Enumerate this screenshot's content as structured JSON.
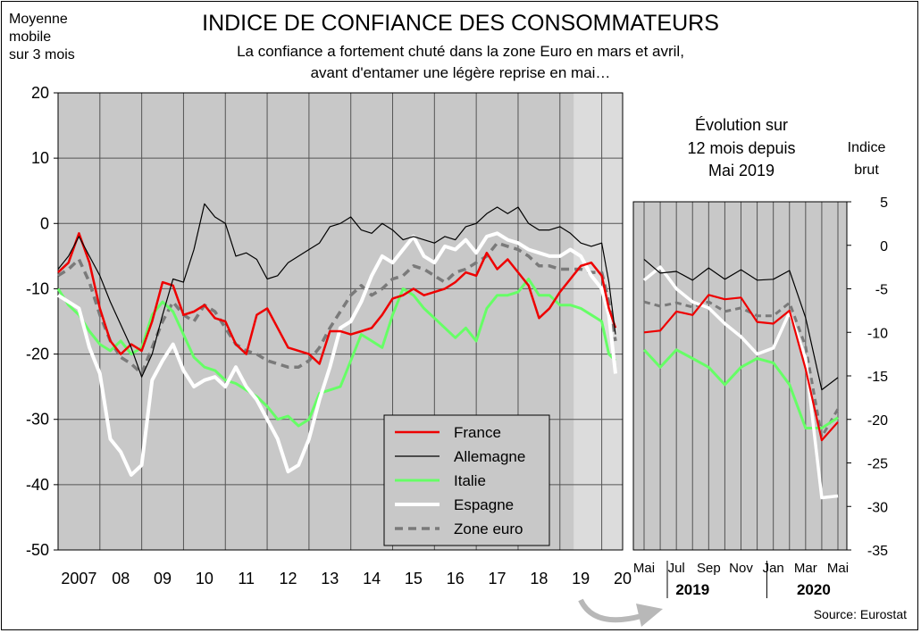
{
  "header": {
    "title": "INDICE DE CONFIANCE DES CONSOMMATEURS",
    "subtitle_line1": "La confiance a fortement chuté dans la zone Euro en mars et avril,",
    "subtitle_line2": "avant d'entamer une légère reprise en mai…",
    "left_axis_label": [
      "Moyenne",
      "mobile",
      "sur 3 mois"
    ],
    "inset_title": [
      "Évolution sur",
      "12 mois depuis",
      "Mai 2019"
    ],
    "right_axis_label": [
      "Indice",
      "brut"
    ],
    "source": "Source: Eurostat"
  },
  "legend": {
    "placement": "bottom-right of main chart",
    "entries": [
      "France",
      "Allemagne",
      "Italie",
      "Espagne",
      "Zone euro"
    ]
  },
  "colors": {
    "France": "#ee0000",
    "Allemagne": "#000000",
    "Italie": "#66ff66",
    "Espagne": "#ffffff",
    "Zone euro": "#7a7a7a",
    "plot_background": "#c8c8c8",
    "highlight_background": "#dcdcdc"
  },
  "chart_data": [
    {
      "type": "line",
      "title": "INDICE DE CONFIANCE DES CONSOMMATEURS",
      "ylabel": "Moyenne mobile sur 3 mois",
      "xlabel": "",
      "ylim": [
        -50,
        20
      ],
      "yticks": [
        20,
        10,
        0,
        -10,
        -20,
        -30,
        -40,
        -50
      ],
      "xlim": [
        2007,
        2020.5
      ],
      "xtick_labels": [
        "2007",
        "08",
        "09",
        "10",
        "11",
        "12",
        "13",
        "14",
        "15",
        "16",
        "17",
        "18",
        "19",
        "20"
      ],
      "grid": true,
      "highlight_band": [
        2019.33,
        2020.5
      ],
      "series": [
        {
          "name": "France",
          "x": [
            2007,
            2007.25,
            2007.5,
            2007.75,
            2008,
            2008.25,
            2008.5,
            2008.75,
            2009,
            2009.25,
            2009.5,
            2009.75,
            2010,
            2010.25,
            2010.5,
            2010.75,
            2011,
            2011.25,
            2011.5,
            2011.75,
            2012,
            2012.25,
            2012.5,
            2012.75,
            2013,
            2013.25,
            2013.5,
            2013.75,
            2014,
            2014.25,
            2014.5,
            2014.75,
            2015,
            2015.25,
            2015.5,
            2015.75,
            2016,
            2016.25,
            2016.5,
            2016.75,
            2017,
            2017.25,
            2017.5,
            2017.75,
            2018,
            2018.25,
            2018.5,
            2018.75,
            2019,
            2019.25,
            2019.5,
            2019.75,
            2020,
            2020.17,
            2020.33
          ],
          "values": [
            -7.5,
            -6,
            -1.5,
            -6,
            -13,
            -18,
            -20,
            -18.5,
            -19.5,
            -15,
            -9,
            -9.5,
            -14,
            -13.5,
            -12.5,
            -14.5,
            -15,
            -18.5,
            -20,
            -14,
            -13,
            -16,
            -19,
            -19.5,
            -20,
            -21.5,
            -16.5,
            -16.5,
            -17,
            -16.5,
            -16,
            -14,
            -11.5,
            -11,
            -10,
            -11,
            -10.5,
            -10,
            -9,
            -7.5,
            -8,
            -4.5,
            -7,
            -5.5,
            -7.5,
            -9.5,
            -14.5,
            -13,
            -10.5,
            -8.5,
            -6.5,
            -6,
            -8,
            -13,
            -16
          ]
        },
        {
          "name": "Allemagne",
          "x": [
            2007,
            2007.25,
            2007.5,
            2007.75,
            2008,
            2008.25,
            2008.5,
            2008.75,
            2009,
            2009.25,
            2009.5,
            2009.75,
            2010,
            2010.25,
            2010.5,
            2010.75,
            2011,
            2011.25,
            2011.5,
            2011.75,
            2012,
            2012.25,
            2012.5,
            2012.75,
            2013,
            2013.25,
            2013.5,
            2013.75,
            2014,
            2014.25,
            2014.5,
            2014.75,
            2015,
            2015.25,
            2015.5,
            2015.75,
            2016,
            2016.25,
            2016.5,
            2016.75,
            2017,
            2017.25,
            2017.5,
            2017.75,
            2018,
            2018.25,
            2018.5,
            2018.75,
            2019,
            2019.25,
            2019.5,
            2019.75,
            2020,
            2020.17,
            2020.33
          ],
          "values": [
            -7,
            -5,
            -2,
            -5,
            -8,
            -12,
            -15.5,
            -19,
            -23.5,
            -20,
            -14,
            -8.5,
            -9,
            -4,
            3,
            1,
            0,
            -5,
            -4.5,
            -5.5,
            -8.5,
            -8,
            -6,
            -5,
            -4,
            -3,
            -0.5,
            0,
            1,
            -1,
            -1.5,
            0,
            -1,
            -2.5,
            -2,
            -2.5,
            -3,
            -2,
            -2.5,
            -0.5,
            0,
            1.5,
            2.5,
            1.5,
            2.5,
            0,
            -1,
            -1,
            -0.5,
            -1.5,
            -3,
            -3.5,
            -3,
            -9,
            -17
          ]
        },
        {
          "name": "Italie",
          "x": [
            2007,
            2007.25,
            2007.5,
            2007.75,
            2008,
            2008.25,
            2008.5,
            2008.75,
            2009,
            2009.25,
            2009.5,
            2009.75,
            2010,
            2010.25,
            2010.5,
            2010.75,
            2011,
            2011.25,
            2011.5,
            2011.75,
            2012,
            2012.25,
            2012.5,
            2012.75,
            2013,
            2013.25,
            2013.5,
            2013.75,
            2014,
            2014.25,
            2014.5,
            2014.75,
            2015,
            2015.25,
            2015.5,
            2015.75,
            2016,
            2016.25,
            2016.5,
            2016.75,
            2017,
            2017.25,
            2017.5,
            2017.75,
            2018,
            2018.25,
            2018.5,
            2018.75,
            2019,
            2019.25,
            2019.5,
            2019.75,
            2020,
            2020.17,
            2020.33
          ],
          "values": [
            -10,
            -12.5,
            -14,
            -16.5,
            -18.5,
            -19.5,
            -18,
            -20,
            -19,
            -14,
            -12,
            -13.5,
            -17,
            -20.5,
            -22,
            -22.5,
            -24,
            -24.5,
            -25.5,
            -26.5,
            -28,
            -30,
            -29.5,
            -31,
            -30,
            -26,
            -25.5,
            -25,
            -21,
            -17,
            -18,
            -19,
            -14,
            -10,
            -11,
            -13,
            -14.5,
            -16,
            -17.5,
            -16,
            -18,
            -13,
            -11,
            -11,
            -10.5,
            -8.5,
            -11,
            -11,
            -12.5,
            -12.5,
            -13,
            -14,
            -15,
            -20,
            -21
          ]
        },
        {
          "name": "Espagne",
          "x": [
            2007,
            2007.25,
            2007.5,
            2007.75,
            2008,
            2008.25,
            2008.5,
            2008.75,
            2009,
            2009.25,
            2009.5,
            2009.75,
            2010,
            2010.25,
            2010.5,
            2010.75,
            2011,
            2011.25,
            2011.5,
            2011.75,
            2012,
            2012.25,
            2012.5,
            2012.75,
            2013,
            2013.25,
            2013.5,
            2013.75,
            2014,
            2014.25,
            2014.5,
            2014.75,
            2015,
            2015.25,
            2015.5,
            2015.75,
            2016,
            2016.25,
            2016.5,
            2016.75,
            2017,
            2017.25,
            2017.5,
            2017.75,
            2018,
            2018.25,
            2018.5,
            2018.75,
            2019,
            2019.25,
            2019.5,
            2019.75,
            2020,
            2020.17,
            2020.33
          ],
          "values": [
            -11,
            -12,
            -13,
            -19,
            -23,
            -33,
            -35,
            -38.5,
            -37,
            -24,
            -21,
            -18.5,
            -22.5,
            -25,
            -24,
            -23.5,
            -25,
            -22,
            -25,
            -27,
            -30,
            -33,
            -38,
            -37,
            -33,
            -27,
            -22,
            -16,
            -15,
            -12,
            -8,
            -5,
            -6,
            -4,
            -2,
            -5,
            -6,
            -3.5,
            -4,
            -2.5,
            -4.5,
            -2,
            -1.5,
            -2.5,
            -3,
            -4,
            -4.5,
            -5,
            -5,
            -4,
            -5,
            -8,
            -10,
            -14,
            -23
          ]
        },
        {
          "name": "Zone euro",
          "x": [
            2007,
            2007.25,
            2007.5,
            2007.75,
            2008,
            2008.25,
            2008.5,
            2008.75,
            2009,
            2009.25,
            2009.5,
            2009.75,
            2010,
            2010.25,
            2010.5,
            2010.75,
            2011,
            2011.25,
            2011.5,
            2011.75,
            2012,
            2012.25,
            2012.5,
            2012.75,
            2013,
            2013.25,
            2013.5,
            2013.75,
            2014,
            2014.25,
            2014.5,
            2014.75,
            2015,
            2015.25,
            2015.5,
            2015.75,
            2016,
            2016.25,
            2016.5,
            2016.75,
            2017,
            2017.25,
            2017.5,
            2017.75,
            2018,
            2018.25,
            2018.5,
            2018.75,
            2019,
            2019.25,
            2019.5,
            2019.75,
            2020,
            2020.17,
            2020.33
          ],
          "values": [
            -8,
            -7,
            -5.5,
            -9,
            -14,
            -18,
            -20.5,
            -21.5,
            -23,
            -19,
            -15,
            -12,
            -14,
            -15,
            -12.5,
            -13.5,
            -16,
            -18.5,
            -19.5,
            -20,
            -21,
            -21.5,
            -22,
            -22,
            -21,
            -19,
            -16,
            -13.5,
            -11,
            -9.5,
            -11,
            -10,
            -8.5,
            -8,
            -6.5,
            -7,
            -8,
            -9,
            -7.5,
            -7,
            -6,
            -5,
            -3,
            -3.5,
            -4,
            -5,
            -6.5,
            -6.5,
            -7,
            -7,
            -7,
            -7.5,
            -7.5,
            -12,
            -18
          ]
        }
      ]
    },
    {
      "type": "line",
      "title": "Évolution sur 12 mois depuis Mai 2019",
      "ylabel": "Indice brut",
      "xlabel": "",
      "ylim": [
        -35,
        5
      ],
      "yticks": [
        5,
        0,
        -5,
        -10,
        -15,
        -20,
        -25,
        -30,
        -35
      ],
      "x_month_labels": [
        "Mai",
        "Jul",
        "Sep",
        "Nov",
        "Jan",
        "Mar",
        "Mai"
      ],
      "x_year_labels": [
        "2019",
        "2020"
      ],
      "grid": true,
      "x": [
        "2019-05",
        "2019-06",
        "2019-07",
        "2019-08",
        "2019-09",
        "2019-10",
        "2019-11",
        "2019-12",
        "2020-01",
        "2020-02",
        "2020-03",
        "2020-04",
        "2020-05"
      ],
      "series": [
        {
          "name": "France",
          "values": [
            -10,
            -9.8,
            -7.6,
            -8,
            -5.7,
            -6.2,
            -6,
            -8.8,
            -9,
            -7.5,
            -14.2,
            -22.4,
            -20.3
          ]
        },
        {
          "name": "Allemagne",
          "values": [
            -1.6,
            -3.2,
            -3,
            -4,
            -2.6,
            -3.9,
            -2.8,
            -4,
            -3.9,
            -2.9,
            -8.3,
            -16.6,
            -15.2
          ]
        },
        {
          "name": "Italie",
          "values": [
            -12,
            -14,
            -12,
            -13,
            -14,
            -16,
            -14,
            -13,
            -13.5,
            -16,
            -21,
            -21,
            -19.8
          ]
        },
        {
          "name": "Espagne",
          "values": [
            -4,
            -2.5,
            -5,
            -6.5,
            -7.2,
            -9,
            -10.5,
            -12.5,
            -11.8,
            -7.7,
            -13,
            -29,
            -28.8
          ]
        },
        {
          "name": "Zone euro",
          "values": [
            -6.5,
            -7,
            -6.6,
            -7.1,
            -6.5,
            -7.6,
            -7.2,
            -8.1,
            -8.1,
            -6.6,
            -11.6,
            -22,
            -18.8
          ]
        }
      ]
    }
  ]
}
